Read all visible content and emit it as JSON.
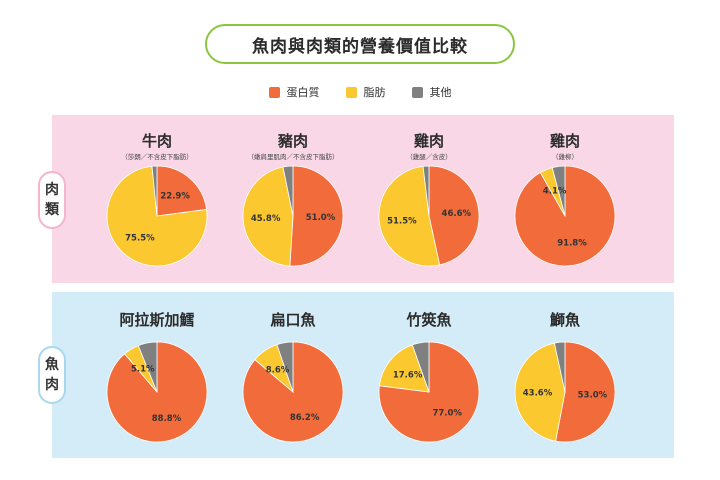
{
  "title": "魚肉與肉類的營養價值比較",
  "legend": [
    {
      "label": "蛋白質",
      "color": "#f26b3a"
    },
    {
      "label": "脂肪",
      "color": "#fcc830"
    },
    {
      "label": "其他",
      "color": "#808080"
    }
  ],
  "groups": {
    "meat": {
      "label_top": "肉",
      "label_bottom": "類"
    },
    "fish": {
      "label_top": "魚",
      "label_bottom": "肉"
    }
  },
  "chart_data": [
    {
      "type": "pie",
      "group": "meat",
      "title": "牛肉",
      "subtitle": "（莎朗／不含皮下脂肪）",
      "values": [
        {
          "category": "蛋白質",
          "value": 22.9,
          "label": "22.9%"
        },
        {
          "category": "脂肪",
          "value": 75.5,
          "label": "75.5%"
        },
        {
          "category": "其他",
          "value": 1.6,
          "label": ""
        }
      ]
    },
    {
      "type": "pie",
      "group": "meat",
      "title": "豬肉",
      "subtitle": "（嫩肩里肌肉／不含皮下脂肪）",
      "values": [
        {
          "category": "蛋白質",
          "value": 51.0,
          "label": "51.0%"
        },
        {
          "category": "脂肪",
          "value": 45.8,
          "label": "45.8%"
        },
        {
          "category": "其他",
          "value": 3.2,
          "label": ""
        }
      ]
    },
    {
      "type": "pie",
      "group": "meat",
      "title": "雞肉",
      "subtitle": "（雞腿／含皮）",
      "values": [
        {
          "category": "蛋白質",
          "value": 46.6,
          "label": "46.6%"
        },
        {
          "category": "脂肪",
          "value": 51.5,
          "label": "51.5%"
        },
        {
          "category": "其他",
          "value": 1.9,
          "label": ""
        }
      ]
    },
    {
      "type": "pie",
      "group": "meat",
      "title": "雞肉",
      "subtitle": "（雞柳）",
      "values": [
        {
          "category": "蛋白質",
          "value": 91.8,
          "label": "91.8%"
        },
        {
          "category": "脂肪",
          "value": 4.1,
          "label": "4.1%"
        },
        {
          "category": "其他",
          "value": 4.1,
          "label": ""
        }
      ]
    },
    {
      "type": "pie",
      "group": "fish",
      "title": "阿拉斯加鱈",
      "subtitle": "",
      "values": [
        {
          "category": "蛋白質",
          "value": 88.8,
          "label": "88.8%"
        },
        {
          "category": "脂肪",
          "value": 5.1,
          "label": "5.1%"
        },
        {
          "category": "其他",
          "value": 6.1,
          "label": ""
        }
      ]
    },
    {
      "type": "pie",
      "group": "fish",
      "title": "扁口魚",
      "subtitle": "",
      "values": [
        {
          "category": "蛋白質",
          "value": 86.2,
          "label": "86.2%"
        },
        {
          "category": "脂肪",
          "value": 8.6,
          "label": "8.6%"
        },
        {
          "category": "其他",
          "value": 5.2,
          "label": ""
        }
      ]
    },
    {
      "type": "pie",
      "group": "fish",
      "title": "竹筴魚",
      "subtitle": "",
      "values": [
        {
          "category": "蛋白質",
          "value": 77.0,
          "label": "77.0%"
        },
        {
          "category": "脂肪",
          "value": 17.6,
          "label": "17.6%"
        },
        {
          "category": "其他",
          "value": 5.4,
          "label": ""
        }
      ]
    },
    {
      "type": "pie",
      "group": "fish",
      "title": "鰤魚",
      "subtitle": "",
      "values": [
        {
          "category": "蛋白質",
          "value": 53.0,
          "label": "53.0%"
        },
        {
          "category": "脂肪",
          "value": 43.6,
          "label": "43.6%"
        },
        {
          "category": "其他",
          "value": 3.4,
          "label": ""
        }
      ]
    }
  ]
}
